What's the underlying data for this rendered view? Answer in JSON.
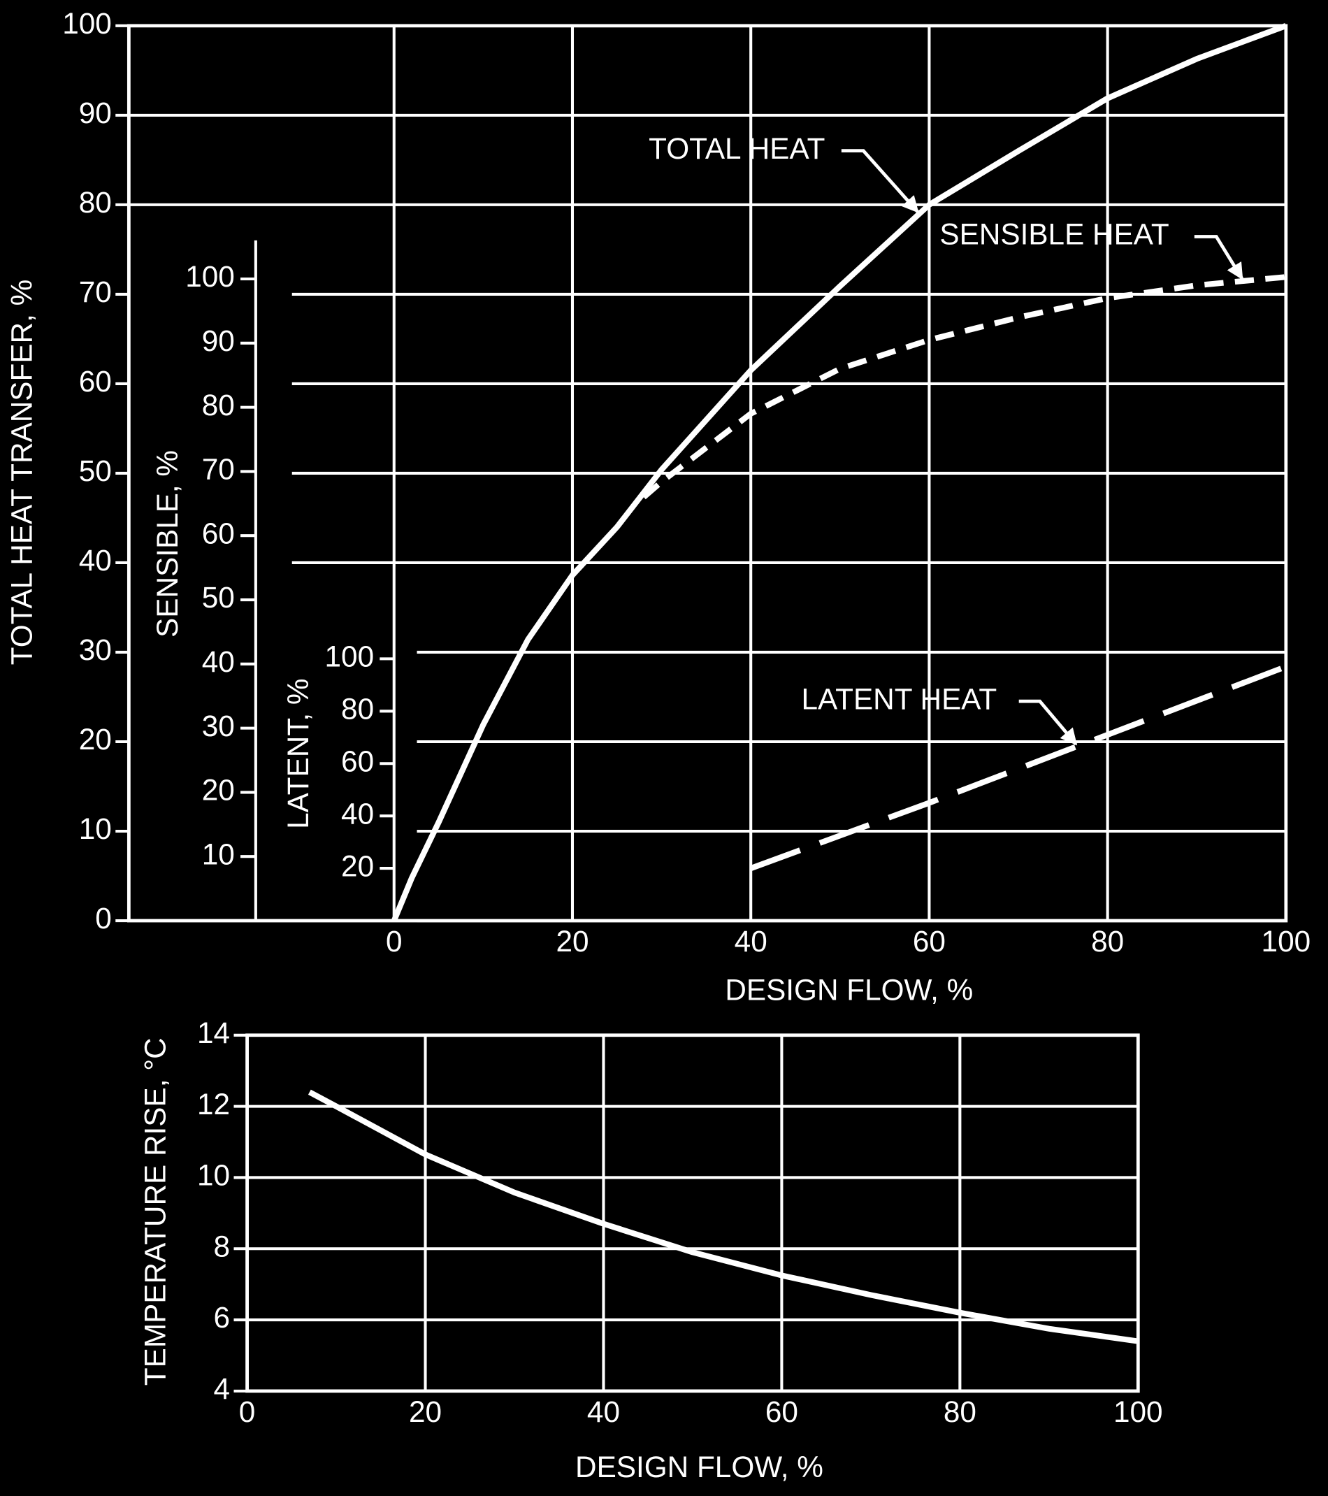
{
  "chart_data": [
    {
      "type": "line",
      "x_label": "DESIGN FLOW, %",
      "y_label": "TOTAL HEAT TRANSFER, %",
      "y2_label": "SENSIBLE, %",
      "y3_label": "LATENT, %",
      "xlim": [
        0,
        100
      ],
      "xticks": [
        0,
        20,
        40,
        60,
        80,
        100
      ],
      "ylim": [
        0,
        100
      ],
      "yticks": [
        0,
        10,
        20,
        30,
        40,
        50,
        60,
        70,
        80,
        90,
        100
      ],
      "y2lim": [
        0,
        106
      ],
      "y2ticks": [
        10,
        20,
        30,
        40,
        50,
        60,
        70,
        80,
        90,
        100
      ],
      "y3lim": [
        0,
        102
      ],
      "y3ticks": [
        20,
        40,
        60,
        80,
        100
      ],
      "grid": true,
      "series": [
        {
          "name": "TOTAL HEAT",
          "color": "#ffffff",
          "dash": "solid",
          "x": [
            0,
            2,
            5,
            10,
            15,
            20,
            25,
            30,
            40,
            50,
            60,
            70,
            80,
            90,
            100
          ],
          "values": [
            0,
            4.8,
            11,
            21.9,
            31.4,
            38.6,
            44,
            50.4,
            61.5,
            70.9,
            80,
            86,
            91.9,
            96.3,
            100
          ]
        },
        {
          "name": "SENSIBLE HEAT",
          "color": "#ffffff",
          "dash": "dashed",
          "axis": "y2",
          "x": [
            28,
            30,
            40,
            50,
            60,
            70,
            80,
            90,
            100
          ],
          "values": [
            66,
            68.4,
            79,
            86,
            90.5,
            94,
            97,
            99,
            100.3
          ]
        },
        {
          "name": "LATENT HEAT",
          "color": "#ffffff",
          "dash": "long-dashed",
          "axis": "y3",
          "x": [
            40,
            60,
            80,
            100
          ],
          "values": [
            20,
            45,
            71,
            97
          ]
        }
      ]
    },
    {
      "type": "line",
      "x_label": "DESIGN FLOW, %",
      "y_label": "TEMPERATURE RISE, °C",
      "xlim": [
        0,
        100
      ],
      "xticks": [
        0,
        20,
        40,
        60,
        80,
        100
      ],
      "ylim": [
        4,
        14
      ],
      "yticks": [
        4,
        6,
        8,
        10,
        12,
        14
      ],
      "grid": true,
      "color": "#ffffff",
      "x": [
        7,
        10,
        20,
        30,
        40,
        50,
        60,
        70,
        80,
        90,
        100
      ],
      "values": [
        12.4,
        12.0,
        10.65,
        9.58,
        8.7,
        7.9,
        7.25,
        6.7,
        6.2,
        5.75,
        5.4
      ]
    }
  ]
}
